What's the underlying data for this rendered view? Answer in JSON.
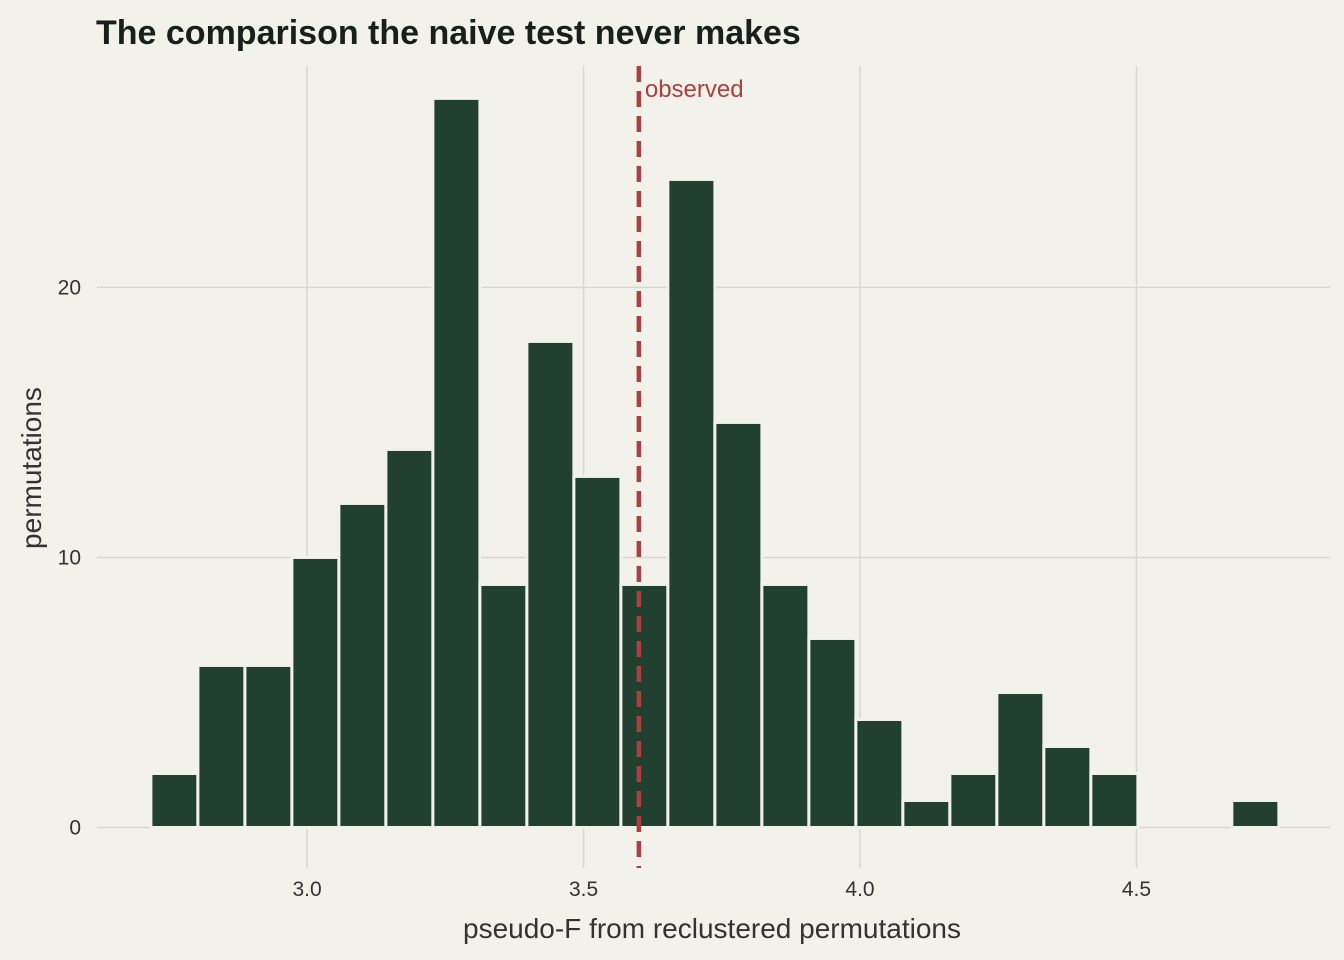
{
  "chart_data": {
    "type": "bar",
    "title": "The comparison the naive test never makes",
    "xlabel": "pseudo-F from reclustered permutations",
    "ylabel": "permutations",
    "xlim": [
      2.62,
      4.85
    ],
    "ylim": [
      -1.5,
      28.2
    ],
    "x_ticks": [
      3.0,
      3.5,
      4.0,
      4.5
    ],
    "x_tick_labels": [
      "3.0",
      "3.5",
      "4.0",
      "4.5"
    ],
    "y_ticks": [
      0,
      10,
      20
    ],
    "y_tick_labels": [
      "0",
      "10",
      "20"
    ],
    "grid": true,
    "bin_width": 0.085,
    "bins": [
      {
        "x": 2.76,
        "count": 2
      },
      {
        "x": 2.845,
        "count": 6
      },
      {
        "x": 2.93,
        "count": 6
      },
      {
        "x": 3.015,
        "count": 10
      },
      {
        "x": 3.1,
        "count": 12
      },
      {
        "x": 3.185,
        "count": 14
      },
      {
        "x": 3.27,
        "count": 27
      },
      {
        "x": 3.355,
        "count": 9
      },
      {
        "x": 3.44,
        "count": 18
      },
      {
        "x": 3.525,
        "count": 13
      },
      {
        "x": 3.61,
        "count": 9
      },
      {
        "x": 3.695,
        "count": 24
      },
      {
        "x": 3.78,
        "count": 15
      },
      {
        "x": 3.865,
        "count": 9
      },
      {
        "x": 3.95,
        "count": 7
      },
      {
        "x": 4.035,
        "count": 4
      },
      {
        "x": 4.12,
        "count": 1
      },
      {
        "x": 4.205,
        "count": 2
      },
      {
        "x": 4.29,
        "count": 5
      },
      {
        "x": 4.375,
        "count": 3
      },
      {
        "x": 4.46,
        "count": 2
      },
      {
        "x": 4.715,
        "count": 1
      }
    ],
    "reference_line": {
      "x": 3.6,
      "label": "observed",
      "color": "#a8413f",
      "style": "dashed"
    },
    "colors": {
      "bar": "#21402f",
      "bar_edge": "#f2f1ea",
      "background": "#f2f1ea",
      "grid": "#d8d8cb",
      "text": "#333333",
      "title": "#17201b"
    }
  }
}
